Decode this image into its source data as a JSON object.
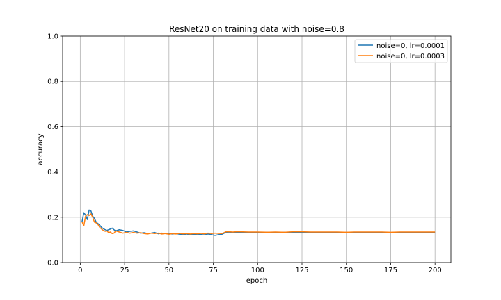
{
  "chart_data": {
    "type": "line",
    "title": "ResNet20 on training data with noise=0.8",
    "xlabel": "epoch",
    "ylabel": "accuracy",
    "xlim": [
      -9.95,
      208.95
    ],
    "ylim": [
      0.0,
      1.0
    ],
    "x_ticks": [
      0,
      25,
      50,
      75,
      100,
      125,
      150,
      175,
      200
    ],
    "y_ticks": [
      0.0,
      0.2,
      0.4,
      0.6,
      0.8,
      1.0
    ],
    "x_tick_labels": [
      "0",
      "25",
      "50",
      "75",
      "100",
      "125",
      "150",
      "175",
      "200"
    ],
    "y_tick_labels": [
      "0.0",
      "0.2",
      "0.4",
      "0.6",
      "0.8",
      "1.0"
    ],
    "grid": true,
    "legend_position": "top-right",
    "series": [
      {
        "name": "noise=0, lr=0.0001",
        "color": "#1f77b4",
        "points": [
          [
            1,
            0.18
          ],
          [
            2,
            0.22
          ],
          [
            3,
            0.21
          ],
          [
            4,
            0.19
          ],
          [
            5,
            0.232
          ],
          [
            6,
            0.228
          ],
          [
            7,
            0.205
          ],
          [
            8,
            0.195
          ],
          [
            9,
            0.178
          ],
          [
            10,
            0.172
          ],
          [
            11,
            0.165
          ],
          [
            12,
            0.155
          ],
          [
            13,
            0.15
          ],
          [
            14,
            0.145
          ],
          [
            15,
            0.142
          ],
          [
            16,
            0.145
          ],
          [
            17,
            0.148
          ],
          [
            18,
            0.152
          ],
          [
            19,
            0.145
          ],
          [
            20,
            0.14
          ],
          [
            22,
            0.145
          ],
          [
            24,
            0.142
          ],
          [
            26,
            0.135
          ],
          [
            28,
            0.138
          ],
          [
            30,
            0.14
          ],
          [
            32,
            0.135
          ],
          [
            34,
            0.13
          ],
          [
            36,
            0.132
          ],
          [
            38,
            0.128
          ],
          [
            40,
            0.13
          ],
          [
            42,
            0.133
          ],
          [
            44,
            0.127
          ],
          [
            46,
            0.13
          ],
          [
            48,
            0.128
          ],
          [
            50,
            0.127
          ],
          [
            52,
            0.126
          ],
          [
            54,
            0.128
          ],
          [
            56,
            0.125
          ],
          [
            58,
            0.123
          ],
          [
            60,
            0.126
          ],
          [
            62,
            0.122
          ],
          [
            64,
            0.125
          ],
          [
            66,
            0.123
          ],
          [
            68,
            0.124
          ],
          [
            70,
            0.122
          ],
          [
            72,
            0.126
          ],
          [
            74,
            0.123
          ],
          [
            76,
            0.12
          ],
          [
            78,
            0.123
          ],
          [
            80,
            0.125
          ],
          [
            82,
            0.133
          ],
          [
            84,
            0.132
          ],
          [
            86,
            0.133
          ],
          [
            88,
            0.134
          ],
          [
            90,
            0.133
          ],
          [
            95,
            0.134
          ],
          [
            100,
            0.133
          ],
          [
            105,
            0.134
          ],
          [
            110,
            0.133
          ],
          [
            115,
            0.134
          ],
          [
            120,
            0.134
          ],
          [
            125,
            0.134
          ],
          [
            130,
            0.133
          ],
          [
            135,
            0.133
          ],
          [
            140,
            0.133
          ],
          [
            145,
            0.133
          ],
          [
            150,
            0.133
          ],
          [
            155,
            0.133
          ],
          [
            160,
            0.132
          ],
          [
            165,
            0.133
          ],
          [
            170,
            0.132
          ],
          [
            175,
            0.132
          ],
          [
            180,
            0.132
          ],
          [
            185,
            0.132
          ],
          [
            190,
            0.132
          ],
          [
            195,
            0.132
          ],
          [
            200,
            0.132
          ]
        ]
      },
      {
        "name": "noise=0, lr=0.0003",
        "color": "#ff7f0e",
        "points": [
          [
            1,
            0.18
          ],
          [
            2,
            0.162
          ],
          [
            3,
            0.205
          ],
          [
            4,
            0.212
          ],
          [
            5,
            0.208
          ],
          [
            6,
            0.215
          ],
          [
            7,
            0.2
          ],
          [
            8,
            0.178
          ],
          [
            9,
            0.175
          ],
          [
            10,
            0.168
          ],
          [
            11,
            0.155
          ],
          [
            12,
            0.148
          ],
          [
            13,
            0.142
          ],
          [
            14,
            0.138
          ],
          [
            15,
            0.14
          ],
          [
            16,
            0.132
          ],
          [
            17,
            0.135
          ],
          [
            18,
            0.128
          ],
          [
            19,
            0.13
          ],
          [
            20,
            0.14
          ],
          [
            22,
            0.135
          ],
          [
            24,
            0.13
          ],
          [
            26,
            0.133
          ],
          [
            28,
            0.13
          ],
          [
            30,
            0.133
          ],
          [
            32,
            0.13
          ],
          [
            34,
            0.132
          ],
          [
            36,
            0.128
          ],
          [
            38,
            0.126
          ],
          [
            40,
            0.13
          ],
          [
            42,
            0.128
          ],
          [
            44,
            0.13
          ],
          [
            46,
            0.126
          ],
          [
            48,
            0.128
          ],
          [
            50,
            0.125
          ],
          [
            52,
            0.128
          ],
          [
            54,
            0.126
          ],
          [
            56,
            0.129
          ],
          [
            58,
            0.127
          ],
          [
            60,
            0.128
          ],
          [
            62,
            0.126
          ],
          [
            64,
            0.128
          ],
          [
            66,
            0.127
          ],
          [
            68,
            0.129
          ],
          [
            70,
            0.127
          ],
          [
            72,
            0.13
          ],
          [
            74,
            0.128
          ],
          [
            76,
            0.13
          ],
          [
            78,
            0.129
          ],
          [
            80,
            0.128
          ],
          [
            82,
            0.136
          ],
          [
            84,
            0.136
          ],
          [
            86,
            0.135
          ],
          [
            88,
            0.136
          ],
          [
            90,
            0.136
          ],
          [
            95,
            0.135
          ],
          [
            100,
            0.135
          ],
          [
            105,
            0.134
          ],
          [
            110,
            0.135
          ],
          [
            115,
            0.134
          ],
          [
            120,
            0.136
          ],
          [
            125,
            0.136
          ],
          [
            130,
            0.135
          ],
          [
            135,
            0.135
          ],
          [
            140,
            0.135
          ],
          [
            145,
            0.135
          ],
          [
            150,
            0.134
          ],
          [
            155,
            0.135
          ],
          [
            160,
            0.135
          ],
          [
            165,
            0.135
          ],
          [
            170,
            0.135
          ],
          [
            175,
            0.134
          ],
          [
            180,
            0.135
          ],
          [
            185,
            0.135
          ],
          [
            190,
            0.135
          ],
          [
            195,
            0.135
          ],
          [
            200,
            0.135
          ]
        ]
      }
    ]
  }
}
